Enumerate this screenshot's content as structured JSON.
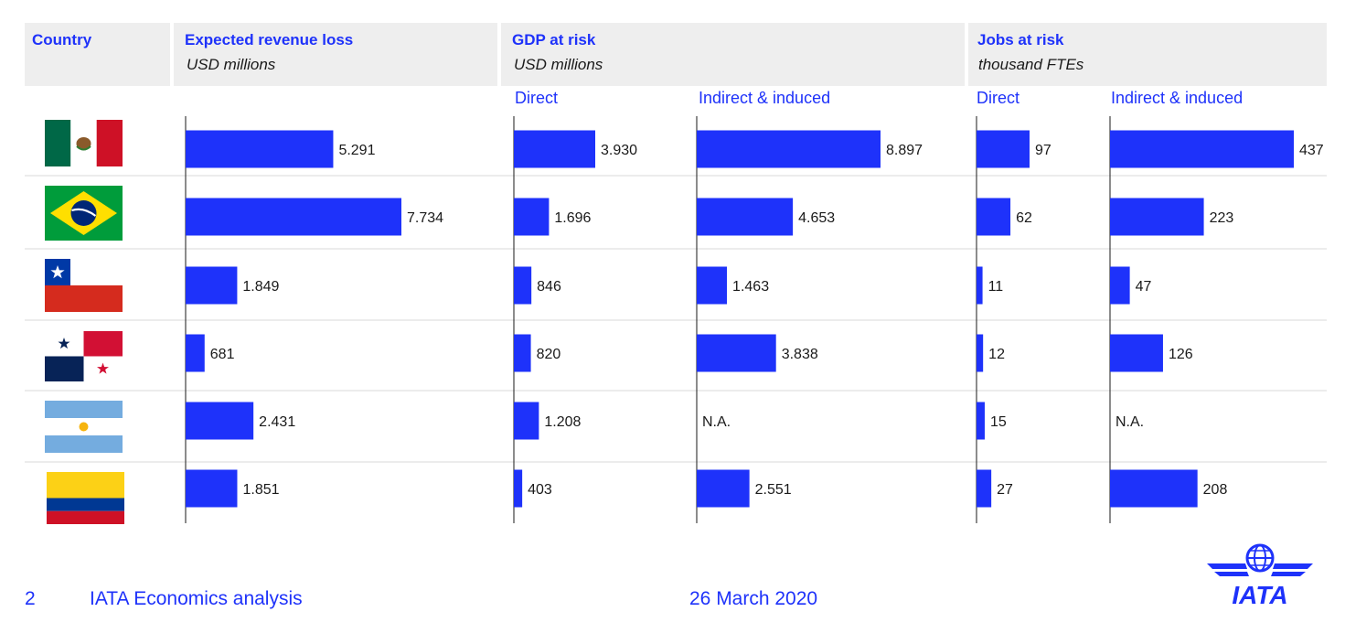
{
  "header": {
    "country": "Country",
    "revenue": {
      "title": "Expected revenue loss",
      "unit": "USD millions"
    },
    "gdp": {
      "title": "GDP at risk",
      "unit": "USD millions"
    },
    "jobs": {
      "title": "Jobs at risk",
      "unit": "thousand FTEs"
    }
  },
  "subheaders": {
    "gdp_direct": "Direct",
    "gdp_indirect": "Indirect & induced",
    "jobs_direct": "Direct",
    "jobs_indirect": "Indirect & induced"
  },
  "colors": {
    "bar": "#1e32fa",
    "accent": "#1e32fa"
  },
  "chart_data": {
    "type": "bar",
    "orientation": "horizontal",
    "categories": [
      "Mexico",
      "Brazil",
      "Chile",
      "Panama",
      "Argentina",
      "Colombia"
    ],
    "category_display": "flag-icon",
    "series": [
      {
        "key": "revenue",
        "values": [
          5291,
          7734,
          1849,
          681,
          2431,
          1851
        ],
        "labels": [
          "5.291",
          "7.734",
          "1.849",
          "681",
          "2.431",
          "1.851"
        ]
      },
      {
        "key": "gdp_direct",
        "values": [
          3930,
          1696,
          846,
          820,
          1208,
          403
        ],
        "labels": [
          "3.930",
          "1.696",
          "846",
          "820",
          "1.208",
          "403"
        ]
      },
      {
        "key": "gdp_indirect",
        "values": [
          8897,
          4653,
          1463,
          3838,
          null,
          2551
        ],
        "labels": [
          "8.897",
          "4.653",
          "1.463",
          "3.838",
          "N.A.",
          "2.551"
        ]
      },
      {
        "key": "jobs_direct",
        "values": [
          97,
          62,
          11,
          12,
          15,
          27
        ],
        "labels": [
          "97",
          "62",
          "11",
          "12",
          "15",
          "27"
        ]
      },
      {
        "key": "jobs_indirect",
        "values": [
          437,
          223,
          47,
          126,
          null,
          208
        ],
        "labels": [
          "437",
          "223",
          "47",
          "126",
          "N.A.",
          "208"
        ]
      }
    ]
  },
  "footer": {
    "page_number": "2",
    "source": "IATA Economics analysis",
    "date": "26 March 2020",
    "logo_text": "IATA"
  }
}
